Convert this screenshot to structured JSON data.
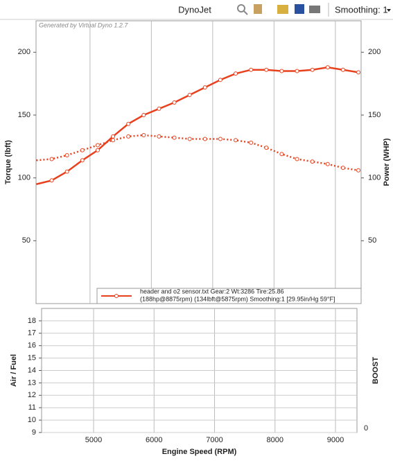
{
  "toolbar": {
    "title": "DynoJet",
    "smoothing": "Smoothing: 1"
  },
  "chart_data": [
    {
      "type": "line",
      "annotation": "Generated by Virtual Dyno 1.2.7",
      "ylabel": "Torque (lbft)",
      "y2label": "Power (WHP)",
      "legend_details": "(188hp@8875rpm) (134lbft@5875rpm) Smoothing:1 [29.95in/Hg 59°F]",
      "xlim": [
        4120,
        9420
      ],
      "ylim": [
        0,
        225
      ],
      "yticks": [
        50,
        100,
        150,
        200
      ],
      "y2lim": [
        0,
        225
      ],
      "y2ticks": [
        50,
        100,
        150,
        200
      ],
      "x": [
        4125,
        4375,
        4625,
        4875,
        5125,
        5375,
        5625,
        5875,
        6125,
        6375,
        6625,
        6875,
        7125,
        7375,
        7625,
        7875,
        8125,
        8375,
        8625,
        8875,
        9125,
        9375
      ],
      "series": [
        {
          "name": "header and o2 sensor.txt Gear:2 Wt:3286 Tire:25.86",
          "color": "#e8401c",
          "axis": "y2",
          "style": "solid",
          "values": [
            95,
            98,
            105,
            114,
            122,
            133,
            143,
            150,
            155,
            160,
            166,
            172,
            178,
            183,
            186,
            186,
            185,
            185,
            186,
            188,
            186,
            184
          ]
        },
        {
          "color": "#e8401c",
          "style": "dotted",
          "values": [
            114,
            115,
            118,
            122,
            126,
            130,
            133,
            134,
            133,
            132,
            131,
            131,
            131,
            130,
            128,
            124,
            119,
            115,
            113,
            111,
            108,
            106
          ]
        }
      ]
    },
    {
      "type": "line",
      "xlabel": "Engine Speed (RPM)",
      "ylabel": "Air / Fuel",
      "y2label": "BOOST",
      "grid": true,
      "xlim": [
        4140,
        9355
      ],
      "xticks": [
        5000,
        6000,
        7000,
        8000,
        9000
      ],
      "ylim": [
        9,
        19
      ],
      "yticks": [
        9,
        10,
        11,
        12,
        13,
        14,
        15,
        16,
        17,
        18
      ],
      "y2ticks": [
        0
      ],
      "series": []
    }
  ]
}
